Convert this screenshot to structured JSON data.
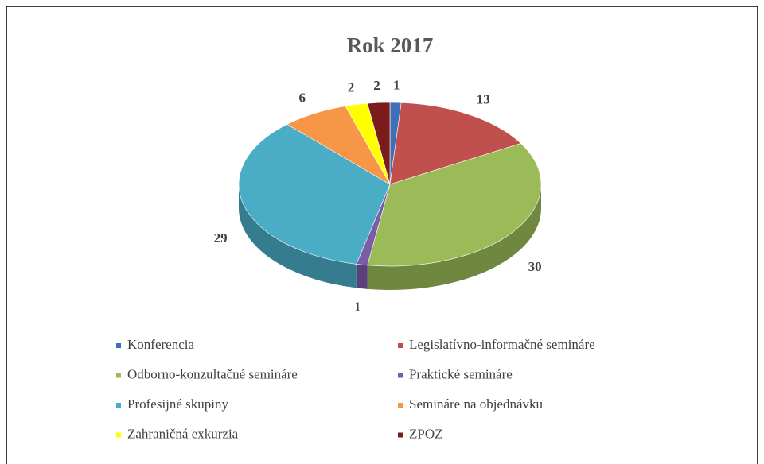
{
  "chart_data": {
    "type": "pie",
    "title": "Rok 2017",
    "categories": [
      "Konferencia",
      "Legislatívno-informačné semináre",
      "Odborno-konzultačné semináre",
      "Praktické semináre",
      "Profesijné skupiny",
      "Semináre na objednávku",
      "Zahraničná exkurzia",
      "ZPOZ"
    ],
    "values": [
      1,
      13,
      30,
      1,
      29,
      6,
      2,
      2
    ],
    "colors": [
      "#3f6fb6",
      "#c0504d",
      "#9bbb59",
      "#7a5ca8",
      "#4bacc6",
      "#f79646",
      "#ffff00",
      "#7b1c1c"
    ],
    "legend": "bottom"
  }
}
